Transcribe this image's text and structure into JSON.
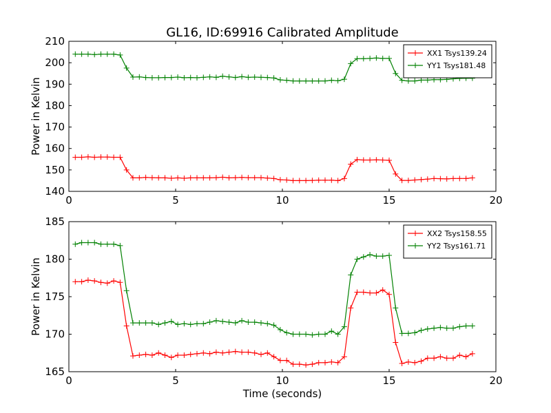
{
  "figure": {
    "title": "GL16, ID:69916 Calibrated Amplitude"
  },
  "chart_data": [
    {
      "type": "line",
      "title": "GL16, ID:69916 Calibrated Amplitude",
      "xlabel": "",
      "ylabel": "Power in Kelvin",
      "xlim": [
        0,
        20
      ],
      "ylim": [
        140,
        210
      ],
      "xticks": [
        "0",
        "5",
        "10",
        "15",
        "20"
      ],
      "yticks": [
        "140",
        "150",
        "160",
        "170",
        "180",
        "190",
        "200",
        "210"
      ],
      "grid": false,
      "legend_position": "top-right",
      "x": [
        0.3,
        0.6,
        0.9,
        1.2,
        1.5,
        1.8,
        2.1,
        2.4,
        2.7,
        3.0,
        3.3,
        3.6,
        3.9,
        4.2,
        4.5,
        4.8,
        5.1,
        5.4,
        5.7,
        6.0,
        6.3,
        6.6,
        6.9,
        7.2,
        7.5,
        7.8,
        8.1,
        8.4,
        8.7,
        9.0,
        9.3,
        9.6,
        9.9,
        10.2,
        10.5,
        10.8,
        11.1,
        11.4,
        11.7,
        12.0,
        12.3,
        12.6,
        12.9,
        13.2,
        13.5,
        13.8,
        14.1,
        14.4,
        14.7,
        15.0,
        15.3,
        15.6,
        15.9,
        16.2,
        16.5,
        16.8,
        17.1,
        17.4,
        17.7,
        18.0,
        18.3,
        18.6,
        18.9
      ],
      "series": [
        {
          "name": "XX1 Tsys139.24",
          "color": "#ff0000",
          "values": [
            155.9,
            155.9,
            156.1,
            155.9,
            156.0,
            156.0,
            155.9,
            155.9,
            150.0,
            146.3,
            146.3,
            146.5,
            146.4,
            146.3,
            146.3,
            146.1,
            146.3,
            146.1,
            146.3,
            146.3,
            146.3,
            146.3,
            146.4,
            146.6,
            146.3,
            146.4,
            146.5,
            146.4,
            146.4,
            146.4,
            146.2,
            146.0,
            145.4,
            145.3,
            145.0,
            145.0,
            145.0,
            145.1,
            145.2,
            145.2,
            145.2,
            145.0,
            146.0,
            152.7,
            154.8,
            154.6,
            154.6,
            154.7,
            154.6,
            154.5,
            148.1,
            145.1,
            145.1,
            145.3,
            145.5,
            145.7,
            146.0,
            145.9,
            145.8,
            146.0,
            146.0,
            146.0,
            146.3
          ]
        },
        {
          "name": "YY1 Tsys181.48",
          "color": "#008000",
          "values": [
            204.0,
            204.0,
            204.0,
            203.8,
            204.0,
            204.0,
            204.0,
            203.6,
            197.5,
            193.3,
            193.4,
            193.1,
            193.0,
            193.0,
            193.1,
            193.1,
            193.3,
            193.0,
            193.1,
            193.0,
            193.2,
            193.4,
            193.2,
            193.7,
            193.4,
            193.1,
            193.5,
            193.2,
            193.3,
            193.2,
            193.1,
            192.9,
            192.0,
            191.8,
            191.5,
            191.5,
            191.5,
            191.5,
            191.5,
            191.5,
            191.8,
            191.6,
            192.3,
            199.6,
            201.9,
            201.9,
            202.0,
            202.2,
            202.0,
            202.0,
            195.0,
            191.8,
            191.5,
            191.5,
            191.9,
            191.9,
            192.1,
            192.1,
            192.2,
            192.5,
            192.7,
            192.8,
            192.8
          ]
        }
      ]
    },
    {
      "type": "line",
      "title": "",
      "xlabel": "Time (seconds)",
      "ylabel": "Power in Kelvin",
      "xlim": [
        0,
        20
      ],
      "ylim": [
        165,
        185
      ],
      "xticks": [
        "0",
        "5",
        "10",
        "15",
        "20"
      ],
      "yticks": [
        "165",
        "170",
        "175",
        "180",
        "185"
      ],
      "grid": false,
      "legend_position": "top-right",
      "x": [
        0.3,
        0.6,
        0.9,
        1.2,
        1.5,
        1.8,
        2.1,
        2.4,
        2.7,
        3.0,
        3.3,
        3.6,
        3.9,
        4.2,
        4.5,
        4.8,
        5.1,
        5.4,
        5.7,
        6.0,
        6.3,
        6.6,
        6.9,
        7.2,
        7.5,
        7.8,
        8.1,
        8.4,
        8.7,
        9.0,
        9.3,
        9.6,
        9.9,
        10.2,
        10.5,
        10.8,
        11.1,
        11.4,
        11.7,
        12.0,
        12.3,
        12.6,
        12.9,
        13.2,
        13.5,
        13.8,
        14.1,
        14.4,
        14.7,
        15.0,
        15.3,
        15.6,
        15.9,
        16.2,
        16.5,
        16.8,
        17.1,
        17.4,
        17.7,
        18.0,
        18.3,
        18.6,
        18.9
      ],
      "series": [
        {
          "name": "XX2 Tsys158.55",
          "color": "#ff0000",
          "values": [
            177.0,
            177.0,
            177.2,
            177.1,
            176.9,
            176.8,
            177.1,
            176.9,
            171.1,
            167.1,
            167.2,
            167.3,
            167.2,
            167.5,
            167.2,
            166.9,
            167.2,
            167.2,
            167.3,
            167.4,
            167.5,
            167.4,
            167.6,
            167.5,
            167.6,
            167.7,
            167.6,
            167.6,
            167.5,
            167.3,
            167.5,
            167.0,
            166.5,
            166.5,
            166.0,
            166.0,
            165.9,
            166.0,
            166.2,
            166.2,
            166.3,
            166.2,
            167.0,
            173.5,
            175.6,
            175.6,
            175.5,
            175.5,
            175.9,
            175.3,
            168.9,
            166.1,
            166.3,
            166.2,
            166.4,
            166.8,
            166.8,
            167.0,
            166.8,
            166.8,
            167.2,
            167.0,
            167.4
          ]
        },
        {
          "name": "YY2 Tsys161.71",
          "color": "#008000",
          "values": [
            182.0,
            182.2,
            182.2,
            182.2,
            182.0,
            182.0,
            182.0,
            181.8,
            175.8,
            171.5,
            171.5,
            171.5,
            171.5,
            171.3,
            171.5,
            171.7,
            171.3,
            171.4,
            171.3,
            171.4,
            171.4,
            171.6,
            171.8,
            171.7,
            171.6,
            171.5,
            171.8,
            171.6,
            171.6,
            171.5,
            171.4,
            171.2,
            170.6,
            170.2,
            170.0,
            170.0,
            170.0,
            169.9,
            170.0,
            170.0,
            170.4,
            170.0,
            171.0,
            177.9,
            180.0,
            180.3,
            180.6,
            180.4,
            180.4,
            180.5,
            173.5,
            170.1,
            170.1,
            170.2,
            170.5,
            170.7,
            170.8,
            170.9,
            170.8,
            170.8,
            171.0,
            171.1,
            171.1
          ]
        }
      ]
    }
  ]
}
